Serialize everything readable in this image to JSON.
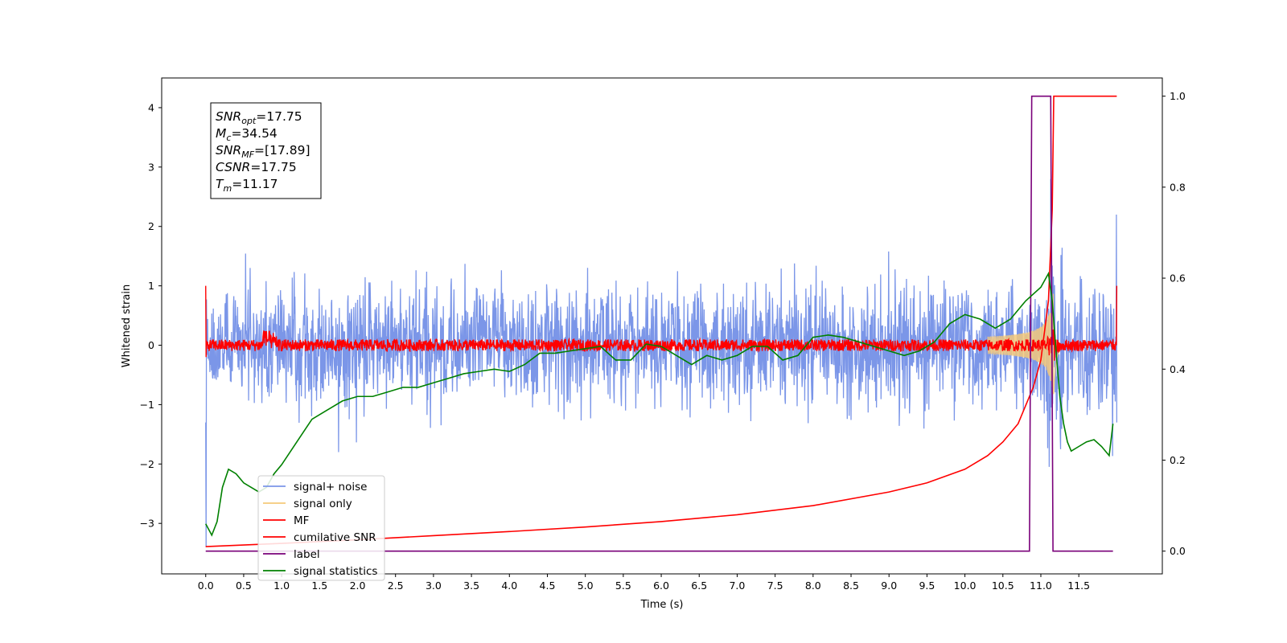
{
  "chart_data": {
    "type": "line",
    "xlabel": "Time (s)",
    "ylabel": "Whitened strain",
    "xlim": [
      -0.58,
      12.6
    ],
    "ylim": [
      -3.85,
      4.5
    ],
    "y2lim": [
      -0.05,
      1.04
    ],
    "x_ticks": [
      "0.0",
      "0.5",
      "1.0",
      "1.5",
      "2.0",
      "2.5",
      "3.0",
      "3.5",
      "4.0",
      "4.5",
      "5.0",
      "5.5",
      "6.0",
      "6.5",
      "7.0",
      "7.5",
      "8.0",
      "8.5",
      "9.0",
      "9.5",
      "10.0",
      "10.5",
      "11.0",
      "11.5"
    ],
    "y_ticks": [
      "4",
      "3",
      "2",
      "1",
      "0",
      "−1",
      "−2",
      "−3"
    ],
    "y_tick_values": [
      4,
      3,
      2,
      1,
      0,
      -1,
      -2,
      -3
    ],
    "y2_ticks": [
      "1.0",
      "0.8",
      "0.6",
      "0.4",
      "0.2",
      "0.0"
    ],
    "y2_tick_values": [
      1.0,
      0.8,
      0.6,
      0.4,
      0.2,
      0.0
    ],
    "grid": false,
    "legend_position": "lower-left",
    "annotation": [
      {
        "base": "SNR",
        "sub": "opt",
        "value": "=17.75"
      },
      {
        "base": "M",
        "sub": "c",
        "value": "=34.54"
      },
      {
        "base": "SNR",
        "sub": "MF",
        "value": "=[17.89]"
      },
      {
        "base": "CSNR",
        "sub": "",
        "value": "=17.75"
      },
      {
        "base": "T",
        "sub": "m",
        "value": "=11.17"
      }
    ],
    "series": [
      {
        "name": "signal+ noise",
        "color": "#7b96e8",
        "axis": "left",
        "kind": "noise",
        "amplitude": 1.1,
        "range": [
          0.0,
          12.0
        ]
      },
      {
        "name": "signal only",
        "color": "#f5c97a",
        "axis": "left",
        "kind": "chirp",
        "merger_time": 11.17
      },
      {
        "name": "MF",
        "color": "#ff0000",
        "axis": "left",
        "kind": "matched-filter",
        "range": [
          0.0,
          12.0
        ]
      },
      {
        "name": "cumilative SNR",
        "color": "#ff0000",
        "axis": "right",
        "x": [
          0.0,
          1.0,
          2.0,
          3.0,
          4.0,
          5.0,
          6.0,
          7.0,
          8.0,
          9.0,
          9.5,
          10.0,
          10.3,
          10.5,
          10.7,
          10.9,
          11.0,
          11.1,
          11.15,
          11.17,
          11.2,
          12.0
        ],
        "values": [
          0.01,
          0.017,
          0.025,
          0.034,
          0.043,
          0.053,
          0.065,
          0.08,
          0.1,
          0.13,
          0.15,
          0.18,
          0.21,
          0.24,
          0.28,
          0.36,
          0.42,
          0.55,
          0.75,
          1.0,
          1.0,
          1.0
        ]
      },
      {
        "name": "label",
        "color": "#7a007a",
        "axis": "right",
        "x": [
          0.0,
          10.85,
          10.88,
          11.13,
          11.16,
          11.95
        ],
        "values": [
          0.0,
          0.0,
          1.0,
          1.0,
          0.0,
          0.0
        ]
      },
      {
        "name": "signal statistics",
        "color": "#008000",
        "axis": "right",
        "x": [
          0.0,
          0.08,
          0.15,
          0.22,
          0.3,
          0.4,
          0.5,
          0.6,
          0.7,
          0.8,
          0.9,
          1.0,
          1.2,
          1.4,
          1.6,
          1.8,
          2.0,
          2.2,
          2.4,
          2.6,
          2.8,
          3.0,
          3.2,
          3.4,
          3.6,
          3.8,
          4.0,
          4.2,
          4.4,
          4.6,
          4.8,
          5.0,
          5.2,
          5.4,
          5.6,
          5.8,
          6.0,
          6.2,
          6.4,
          6.6,
          6.8,
          7.0,
          7.2,
          7.4,
          7.6,
          7.8,
          8.0,
          8.2,
          8.4,
          8.6,
          8.8,
          9.0,
          9.2,
          9.4,
          9.6,
          9.8,
          10.0,
          10.2,
          10.4,
          10.6,
          10.8,
          11.0,
          11.1,
          11.15,
          11.2,
          11.25,
          11.3,
          11.35,
          11.4,
          11.5,
          11.6,
          11.7,
          11.8,
          11.9,
          11.95
        ],
        "values": [
          0.06,
          0.035,
          0.065,
          0.14,
          0.18,
          0.17,
          0.15,
          0.14,
          0.13,
          0.14,
          0.17,
          0.19,
          0.24,
          0.29,
          0.31,
          0.33,
          0.34,
          0.34,
          0.35,
          0.36,
          0.36,
          0.37,
          0.38,
          0.39,
          0.395,
          0.4,
          0.395,
          0.41,
          0.435,
          0.435,
          0.44,
          0.445,
          0.45,
          0.42,
          0.42,
          0.455,
          0.45,
          0.43,
          0.41,
          0.43,
          0.42,
          0.43,
          0.45,
          0.45,
          0.42,
          0.43,
          0.47,
          0.475,
          0.47,
          0.46,
          0.45,
          0.44,
          0.43,
          0.44,
          0.46,
          0.5,
          0.52,
          0.51,
          0.49,
          0.51,
          0.55,
          0.58,
          0.61,
          0.55,
          0.44,
          0.34,
          0.28,
          0.24,
          0.22,
          0.23,
          0.24,
          0.245,
          0.23,
          0.21,
          0.28
        ]
      }
    ]
  }
}
